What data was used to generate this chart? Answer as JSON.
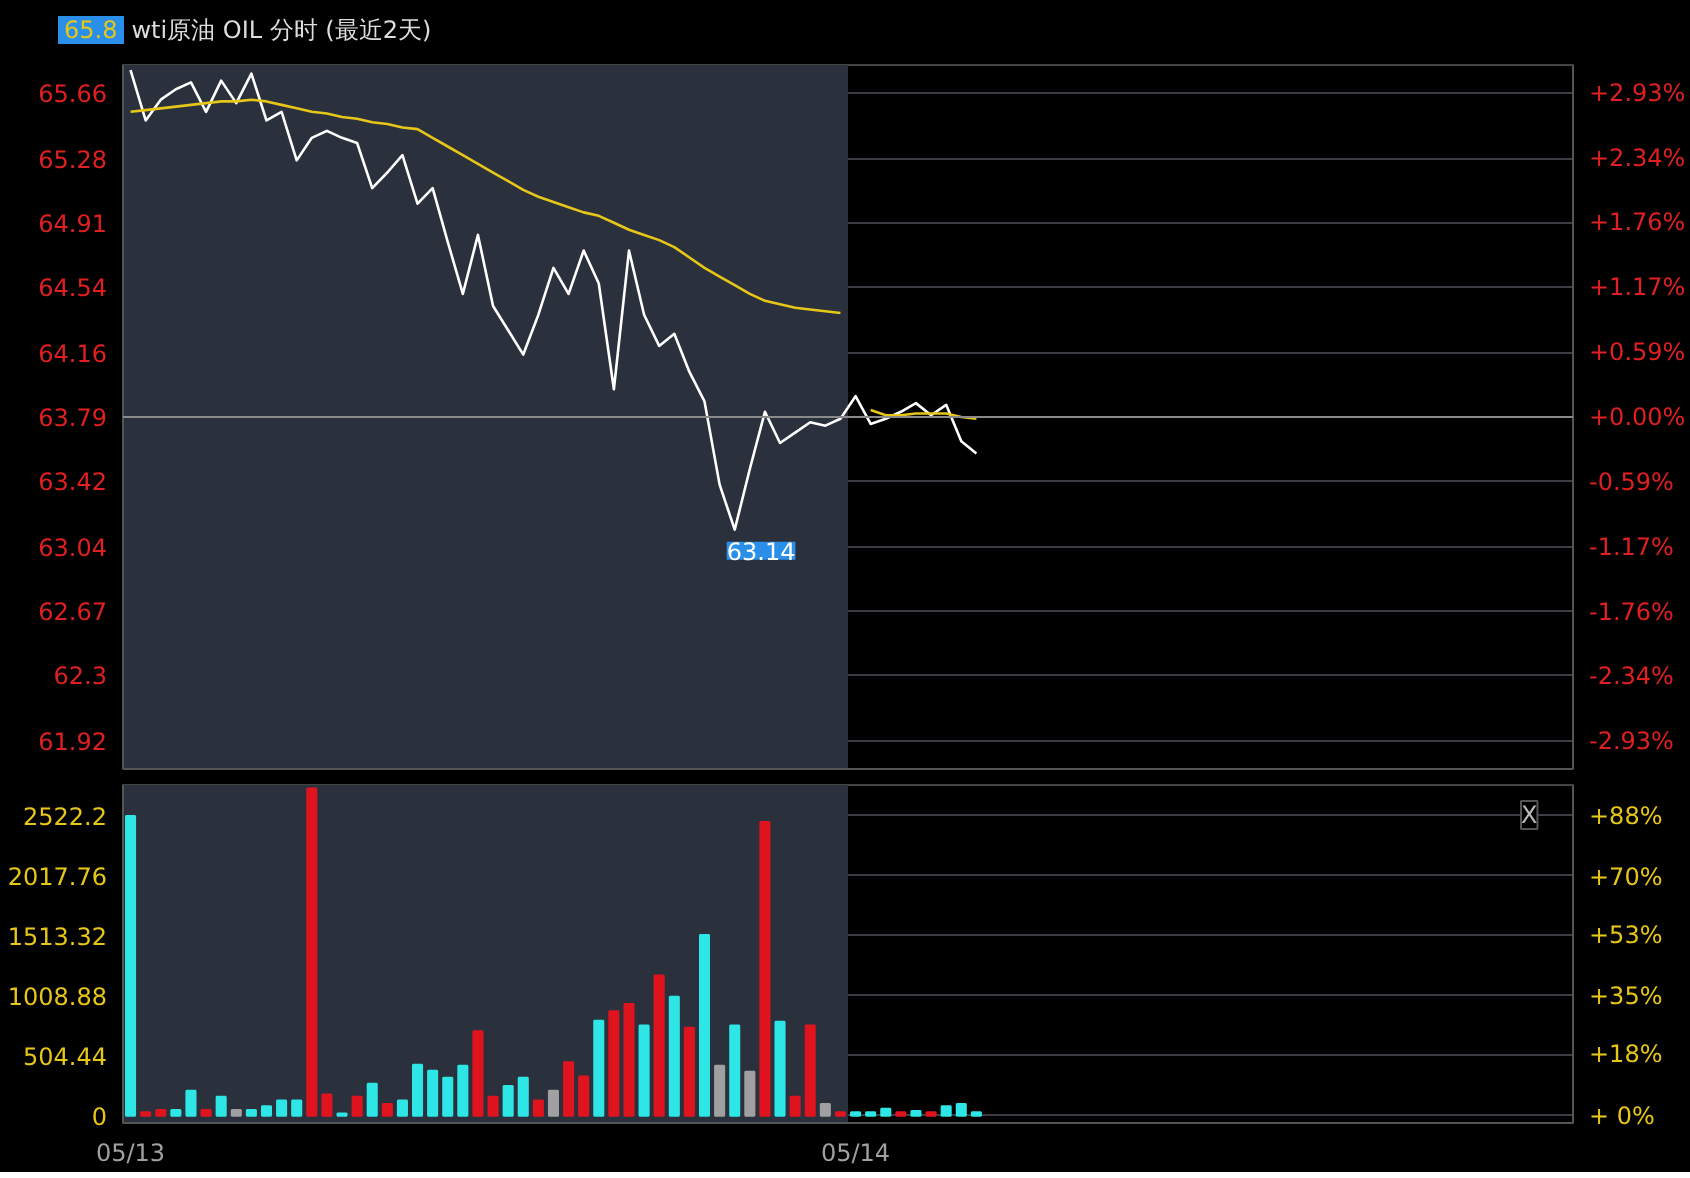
{
  "chart_data": [
    {
      "type": "line",
      "title": "wti原油 OIL 分时 (最近2天)",
      "categories": [
        "05/13",
        null,
        null,
        null,
        null,
        null,
        null,
        null,
        null,
        null,
        null,
        null,
        null,
        null,
        null,
        null,
        null,
        null,
        null,
        null,
        null,
        null,
        null,
        null,
        null,
        null,
        null,
        null,
        null,
        null,
        null,
        null,
        null,
        null,
        null,
        null,
        null,
        null,
        null,
        null,
        null,
        null,
        null,
        null,
        null,
        null,
        null,
        null,
        "05/14",
        null,
        null,
        null,
        null,
        null,
        null,
        null,
        null,
        null,
        null,
        null,
        null,
        null,
        null,
        null,
        null,
        null,
        null,
        null,
        null,
        null,
        null,
        null,
        null,
        null,
        null,
        null,
        null,
        null,
        null,
        null,
        null,
        null,
        null,
        null,
        null,
        null,
        null,
        null,
        null,
        null,
        null,
        null,
        null,
        null,
        null,
        null
      ],
      "ylim": [
        61.76,
        65.82
      ],
      "yticks": [
        61.92,
        62.3,
        62.67,
        63.04,
        63.42,
        63.79,
        64.16,
        64.54,
        64.91,
        65.28,
        65.66
      ],
      "y2lim": [
        -3.18,
        3.18
      ],
      "y2ticks": [
        {
          "value": -2.93,
          "label": "-2.93%"
        },
        {
          "value": -2.34,
          "label": "-2.34%"
        },
        {
          "value": -1.76,
          "label": "-1.76%"
        },
        {
          "value": -1.17,
          "label": "-1.17%"
        },
        {
          "value": -0.59,
          "label": "-0.59%"
        },
        {
          "value": 0,
          "label": "+0.00%"
        },
        {
          "value": 0.59,
          "label": "+0.59%"
        },
        {
          "value": 1.17,
          "label": "+1.17%"
        },
        {
          "value": 1.76,
          "label": "+1.76%"
        },
        {
          "value": 2.34,
          "label": "+2.34%"
        },
        {
          "value": 2.93,
          "label": "+2.93%"
        }
      ],
      "tick_labels": "y",
      "grid": "y",
      "bands": [
        {
          "axis": "x",
          "from": "05/13",
          "to": "05/14",
          "color": "#2b303d"
        }
      ],
      "ref_lines": [
        {
          "axis": "y",
          "value": 63.79,
          "color": "#8a8a8a"
        }
      ],
      "annotations": [
        "65.8",
        "63.14"
      ],
      "series": [
        {
          "color": "#ffffff",
          "values": [
            65.79,
            65.5,
            65.62,
            65.68,
            65.72,
            65.55,
            65.73,
            65.6,
            65.77,
            65.5,
            65.55,
            65.27,
            65.4,
            65.44,
            65.4,
            65.37,
            65.11,
            65.2,
            65.3,
            65.02,
            65.11,
            64.8,
            64.5,
            64.84,
            64.43,
            64.29,
            64.15,
            64.38,
            64.65,
            64.5,
            64.75,
            64.56,
            63.95,
            64.75,
            64.38,
            64.2,
            64.27,
            64.05,
            63.88,
            63.4,
            63.14,
            63.49,
            63.82,
            63.64,
            63.7,
            63.76,
            63.74,
            63.78,
            63.91,
            63.75,
            63.78,
            63.82,
            63.87,
            63.8,
            63.86,
            63.65,
            63.58,
            null,
            null,
            null,
            null,
            null,
            null,
            null,
            null,
            null,
            null,
            null,
            null,
            null,
            null,
            null,
            null,
            null,
            null,
            null,
            null,
            null,
            null,
            null,
            null,
            null,
            null,
            null,
            null,
            null,
            null,
            null,
            null,
            null,
            null,
            null,
            null,
            null,
            null,
            null
          ]
        },
        {
          "color": "#e6c619",
          "values": [
            65.55,
            65.56,
            65.57,
            65.58,
            65.59,
            65.6,
            65.61,
            65.61,
            65.62,
            65.61,
            65.59,
            65.57,
            65.55,
            65.54,
            65.52,
            65.51,
            65.49,
            65.48,
            65.46,
            65.45,
            65.4,
            65.35,
            65.3,
            65.25,
            65.2,
            65.15,
            65.1,
            65.06,
            65.03,
            65.0,
            64.97,
            64.95,
            64.91,
            64.87,
            64.84,
            64.81,
            64.77,
            64.71,
            64.65,
            64.6,
            64.55,
            64.5,
            64.46,
            64.44,
            64.42,
            64.41,
            64.4,
            64.39,
            null,
            63.83,
            63.8,
            63.8,
            63.81,
            63.81,
            63.81,
            63.79,
            63.78,
            null,
            null,
            null,
            null,
            null,
            null,
            null,
            null,
            null,
            null,
            null,
            null,
            null,
            null,
            null,
            null,
            null,
            null,
            null,
            null,
            null,
            null,
            null,
            null,
            null,
            null,
            null,
            null,
            null,
            null,
            null,
            null,
            null,
            null,
            null,
            null,
            null,
            null,
            null
          ]
        }
      ]
    },
    {
      "type": "bar",
      "categories": [
        "05/13",
        null,
        null,
        null,
        null,
        null,
        null,
        null,
        null,
        null,
        null,
        null,
        null,
        null,
        null,
        null,
        null,
        null,
        null,
        null,
        null,
        null,
        null,
        null,
        null,
        null,
        null,
        null,
        null,
        null,
        null,
        null,
        null,
        null,
        null,
        null,
        null,
        null,
        null,
        null,
        null,
        null,
        null,
        null,
        null,
        null,
        null,
        null,
        "05/14",
        null,
        null,
        null,
        null,
        null,
        null,
        null,
        null,
        null,
        null,
        null,
        null,
        null,
        null,
        null,
        null,
        null,
        null,
        null,
        null,
        null,
        null,
        null,
        null,
        null,
        null,
        null,
        null,
        null,
        null,
        null,
        null,
        null,
        null,
        null,
        null,
        null,
        null,
        null,
        null,
        null,
        null,
        null,
        null,
        null,
        null,
        null
      ],
      "ylim": [
        -60,
        2780
      ],
      "yticks": [
        0.0,
        504.44,
        1008.88,
        1513.32,
        2017.76,
        2522.2
      ],
      "y2lim": [
        -2.1,
        97
      ],
      "y2ticks": [
        {
          "value": 0,
          "label": "+ 0%"
        },
        {
          "value": 18,
          "label": "+18%"
        },
        {
          "value": 35,
          "label": "+35%"
        },
        {
          "value": 53,
          "label": "+53%"
        },
        {
          "value": 70,
          "label": "+70%"
        },
        {
          "value": 88,
          "label": "+88%"
        }
      ],
      "grid": "y",
      "bands": [
        {
          "axis": "x",
          "from": "05/13",
          "to": "05/14",
          "color": "#2b303d"
        }
      ],
      "annotations": [
        "X"
      ],
      "values": [
        2520,
        30,
        50,
        50,
        210,
        50,
        160,
        50,
        50,
        80,
        130,
        130,
        2750,
        180,
        20,
        160,
        270,
        100,
        130,
        430,
        380,
        320,
        420,
        710,
        160,
        250,
        320,
        130,
        210,
        450,
        330,
        800,
        880,
        940,
        760,
        1180,
        1000,
        740,
        1520,
        420,
        760,
        370,
        2470,
        790,
        160,
        760,
        100,
        30,
        30,
        30,
        60,
        30,
        40,
        30,
        80,
        100,
        30,
        null,
        null,
        null,
        null,
        null,
        null,
        null,
        null,
        null,
        null,
        null,
        null,
        null,
        null,
        null,
        null,
        null,
        null,
        null,
        null,
        null,
        null,
        null,
        null,
        null,
        null,
        null,
        null,
        null,
        null,
        null,
        null,
        null,
        null,
        null,
        null,
        null,
        null,
        null
      ],
      "colors": [
        "#2ee6e6",
        "#e0141e",
        "#e0141e",
        "#2ee6e6",
        "#2ee6e6",
        "#e0141e",
        "#2ee6e6",
        "#a0a0a0",
        "#2ee6e6",
        "#2ee6e6",
        "#2ee6e6",
        "#2ee6e6",
        "#e0141e",
        "#e0141e",
        "#2ee6e6",
        "#e0141e",
        "#2ee6e6",
        "#e0141e",
        "#2ee6e6",
        "#2ee6e6",
        "#2ee6e6",
        "#2ee6e6",
        "#2ee6e6",
        "#e0141e",
        "#e0141e",
        "#2ee6e6",
        "#2ee6e6",
        "#e0141e",
        "#a0a0a0",
        "#e0141e",
        "#e0141e",
        "#2ee6e6",
        "#e0141e",
        "#e0141e",
        "#2ee6e6",
        "#e0141e",
        "#2ee6e6",
        "#e0141e",
        "#2ee6e6",
        "#a0a0a0",
        "#2ee6e6",
        "#a0a0a0",
        "#e0141e",
        "#2ee6e6",
        "#e0141e",
        "#e0141e",
        "#a0a0a0",
        "#e0141e",
        "#2ee6e6",
        "#2ee6e6",
        "#2ee6e6",
        "#e0141e",
        "#2ee6e6",
        "#e0141e",
        "#2ee6e6",
        "#2ee6e6",
        "#2ee6e6",
        null,
        null,
        null,
        null,
        null,
        null,
        null,
        null,
        null,
        null,
        null,
        null,
        null,
        null,
        null,
        null,
        null,
        null,
        null,
        null,
        null,
        null,
        null,
        null,
        null,
        null,
        null,
        null,
        null,
        null,
        null,
        null,
        null,
        null,
        null,
        null,
        null,
        null,
        null
      ]
    }
  ]
}
